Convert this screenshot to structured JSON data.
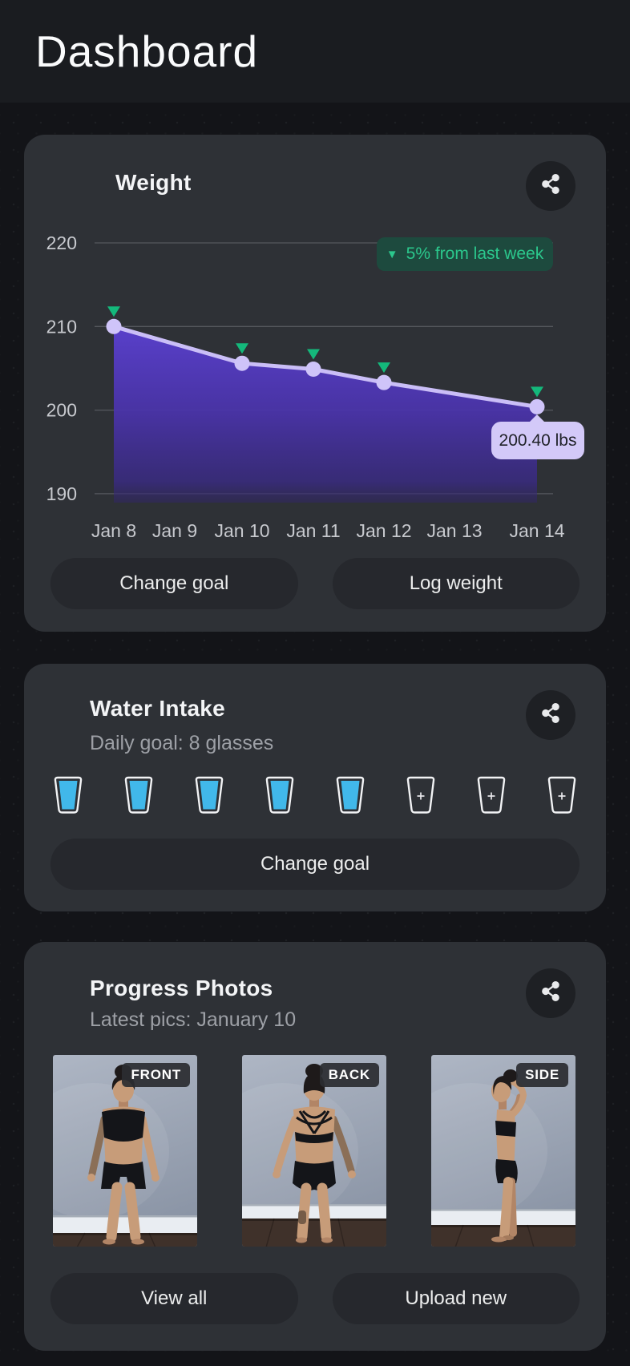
{
  "header": {
    "title": "Dashboard"
  },
  "chart_data": {
    "type": "area",
    "title": "Weight",
    "x": [
      "Jan 8",
      "Jan 9",
      "Jan 10",
      "Jan 11",
      "Jan 12",
      "Jan 13",
      "Jan 14"
    ],
    "yticks": [
      220,
      210,
      200,
      190
    ],
    "ylim": [
      190,
      220
    ],
    "grid": true,
    "legend": false,
    "series": [
      {
        "name": "Weight (lbs)",
        "points": [
          {
            "x": "Jan 8",
            "y": 210.0
          },
          {
            "x": "Jan 10",
            "y": 205.6
          },
          {
            "x": "Jan 11",
            "y": 204.9
          },
          {
            "x": "Jan 12",
            "y": 203.3
          },
          {
            "x": "Jan 14",
            "y": 200.4
          }
        ]
      }
    ],
    "annotations": [
      "5% from last week",
      "200.40 lbs"
    ]
  },
  "weight_card": {
    "title": "Weight",
    "trend_badge": "5% from last week",
    "trend_icon": "triangle-down-icon",
    "tooltip": "200.40 lbs",
    "change_goal_label": "Change goal",
    "log_weight_label": "Log weight",
    "share_icon": "share-icon"
  },
  "water_card": {
    "title": "Water Intake",
    "subtitle": "Daily goal: 8 glasses",
    "goal_glasses": 8,
    "filled_glasses": 5,
    "add_glass_label": "+",
    "change_goal_label": "Change goal",
    "share_icon": "share-icon"
  },
  "photos_card": {
    "title": "Progress Photos",
    "subtitle": "Latest pics: January 10",
    "photos": [
      {
        "label": "FRONT",
        "pose": "front"
      },
      {
        "label": "BACK",
        "pose": "back"
      },
      {
        "label": "SIDE",
        "pose": "side"
      }
    ],
    "view_all_label": "View all",
    "upload_new_label": "Upload new",
    "share_icon": "share-icon"
  },
  "colors": {
    "accent_line": "#cabef7",
    "area_fill_top": "#5a40cf",
    "green": "#14b87b",
    "badge_bg": "#1d4a3e",
    "badge_text": "#2bc78c",
    "water_blue": "#41b8ea",
    "tooltip_bg": "#d3c9f8",
    "card_bg": "#2e3136",
    "button_bg": "#26282d"
  }
}
